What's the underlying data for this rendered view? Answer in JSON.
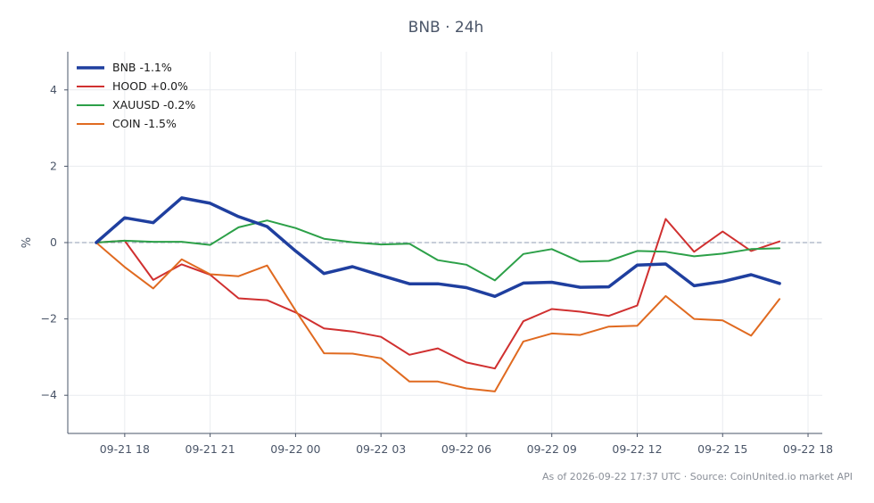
{
  "chart_data": {
    "type": "line",
    "title": "BNB · 24h",
    "ylabel": "%",
    "xlabel": "",
    "ylim": [
      -5,
      5
    ],
    "yticks": [
      -4,
      -2,
      0,
      2,
      4
    ],
    "ytick_labels": [
      "−4",
      "−2",
      "0",
      "2",
      "4"
    ],
    "xlim": [
      -1.0,
      25.5
    ],
    "xticks": [
      {
        "at": 1,
        "label": "09-21 18"
      },
      {
        "at": 4,
        "label": "09-21 21"
      },
      {
        "at": 7,
        "label": "09-22 00"
      },
      {
        "at": 10,
        "label": "09-22 03"
      },
      {
        "at": 13,
        "label": "09-22 06"
      },
      {
        "at": 16,
        "label": "09-22 09"
      },
      {
        "at": 19,
        "label": "09-22 12"
      },
      {
        "at": 22,
        "label": "09-22 15"
      },
      {
        "at": 25,
        "label": "09-22 18"
      }
    ],
    "x_start": "09-21 17:00",
    "x_step": "1h",
    "zero_line": true,
    "grid": true,
    "legend_position": "top-left",
    "series": [
      {
        "name": "BNB -1.1%",
        "color": "#1f3f9f",
        "width": 3.5,
        "values": [
          0,
          0.65,
          0.52,
          1.17,
          1.03,
          0.68,
          0.42,
          -0.22,
          -0.81,
          -0.63,
          -0.86,
          -1.08,
          -1.08,
          -1.18,
          -1.41,
          -1.06,
          -1.04,
          -1.17,
          -1.16,
          -0.59,
          -0.56,
          -1.13,
          -1.02,
          -0.84,
          -1.07
        ]
      },
      {
        "name": "HOOD +0.0%",
        "color": "#d03030",
        "width": 2,
        "values": [
          0,
          0.05,
          -0.98,
          -0.57,
          -0.84,
          -1.46,
          -1.51,
          -1.83,
          -2.25,
          -2.33,
          -2.47,
          -2.94,
          -2.77,
          -3.14,
          -3.3,
          -2.06,
          -1.74,
          -1.81,
          -1.92,
          -1.65,
          0.62,
          -0.24,
          0.29,
          -0.22,
          0.03
        ]
      },
      {
        "name": "XAUUSD -0.2%",
        "color": "#2ca048",
        "width": 2,
        "values": [
          0,
          0.05,
          0.02,
          0.02,
          -0.06,
          0.4,
          0.58,
          0.38,
          0.1,
          0.01,
          -0.05,
          -0.03,
          -0.46,
          -0.58,
          -0.99,
          -0.3,
          -0.17,
          -0.5,
          -0.48,
          -0.22,
          -0.24,
          -0.36,
          -0.29,
          -0.17,
          -0.15
        ]
      },
      {
        "name": "COIN -1.5%",
        "color": "#e06a20",
        "width": 2,
        "values": [
          0,
          -0.64,
          -1.2,
          -0.44,
          -0.83,
          -0.88,
          -0.6,
          -1.78,
          -2.9,
          -2.91,
          -3.03,
          -3.64,
          -3.64,
          -3.82,
          -3.9,
          -2.59,
          -2.38,
          -2.42,
          -2.2,
          -2.18,
          -1.4,
          -2.0,
          -2.04,
          -2.44,
          -1.48
        ]
      }
    ]
  },
  "footer": {
    "source": "As of 2026-09-22 17:37 UTC · Source: CoinUnited.io market API"
  }
}
